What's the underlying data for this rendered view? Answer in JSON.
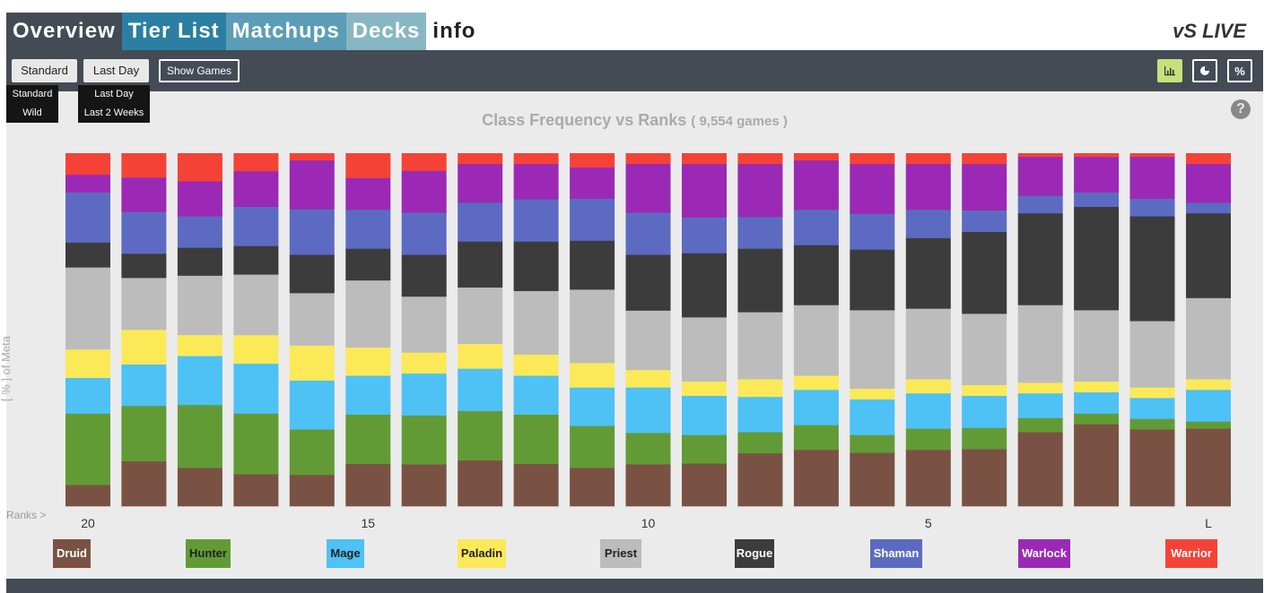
{
  "nav": {
    "tabs": [
      {
        "label": "Overview",
        "bg": "#444b55"
      },
      {
        "label": "Tier List",
        "bg": "#2a7fa3"
      },
      {
        "label": "Matchups",
        "bg": "#5b9db6"
      },
      {
        "label": "Decks",
        "bg": "#87b7c2"
      },
      {
        "label": "info",
        "bg": "#ffffff"
      }
    ],
    "logo": "vS LIVE"
  },
  "toolbar": {
    "format_button": "Standard",
    "time_button": "Last Day",
    "show_games_button": "Show Games",
    "format_options": [
      "Standard",
      "Wild"
    ],
    "time_options": [
      "Last Day",
      "Last 2 Weeks"
    ],
    "icons": [
      "bar-chart-icon",
      "pie-chart-icon",
      "percent-icon"
    ],
    "active_icon_color": "#c8e07a"
  },
  "chart_title": {
    "main": "Class Frequency vs Ranks",
    "sub": "( 9,554 games )"
  },
  "ranks_label": "Ranks >",
  "chart_data": {
    "type": "bar",
    "stacked": true,
    "normalized_percent": true,
    "title": "Class Frequency vs Ranks",
    "ylabel": "[ % ] of Meta",
    "xlabel": "Ranks >",
    "ylim": [
      0,
      100
    ],
    "categories": [
      "20",
      "19",
      "18",
      "17",
      "16",
      "15",
      "14",
      "13",
      "12",
      "11",
      "10",
      "9",
      "8",
      "7",
      "6",
      "5",
      "4",
      "3",
      "2",
      "1",
      "L"
    ],
    "x_tick_labels": [
      "20",
      "15",
      "10",
      "5",
      "L"
    ],
    "series": [
      {
        "name": "Druid",
        "color": "#7a5244",
        "values": [
          6,
          13,
          11,
          9,
          9,
          12,
          12,
          13,
          12,
          11,
          12,
          12,
          15,
          16,
          15,
          16,
          16,
          21,
          23,
          22,
          22
        ]
      },
      {
        "name": "Hunter",
        "color": "#629b36",
        "values": [
          20,
          16,
          18,
          17,
          13,
          14,
          14,
          14,
          14,
          12,
          9,
          8,
          6,
          7,
          5,
          6,
          6,
          4,
          3,
          3,
          2
        ]
      },
      {
        "name": "Mage",
        "color": "#4ec1f5",
        "values": [
          10,
          12,
          14,
          14,
          14,
          11,
          12,
          12,
          11,
          11,
          13,
          11,
          10,
          10,
          10,
          10,
          9,
          7,
          6,
          6,
          9
        ]
      },
      {
        "name": "Paladin",
        "color": "#fbe957",
        "values": [
          8,
          10,
          6,
          8,
          10,
          8,
          6,
          7,
          6,
          7,
          5,
          4,
          5,
          4,
          3,
          4,
          3,
          3,
          3,
          3,
          3
        ]
      },
      {
        "name": "Priest",
        "color": "#bcbcbc",
        "values": [
          23,
          15,
          17,
          17,
          15,
          19,
          16,
          16,
          18,
          21,
          17,
          18,
          19,
          20,
          22,
          20,
          20,
          22,
          20,
          19,
          23
        ]
      },
      {
        "name": "Rogue",
        "color": "#3c3c3c",
        "values": [
          7,
          7,
          8,
          8,
          11,
          9,
          12,
          13,
          14,
          14,
          16,
          18,
          18,
          17,
          17,
          20,
          23,
          26,
          29,
          30,
          24
        ]
      },
      {
        "name": "Shaman",
        "color": "#5c6bc1",
        "values": [
          14,
          12,
          9,
          11,
          13,
          11,
          12,
          11,
          12,
          12,
          12,
          10,
          9,
          10,
          10,
          8,
          6,
          5,
          4,
          5,
          3
        ]
      },
      {
        "name": "Warlock",
        "color": "#9b29b6",
        "values": [
          5,
          10,
          10,
          10,
          14,
          9,
          12,
          11,
          10,
          9,
          14,
          15,
          15,
          14,
          14,
          13,
          13,
          11,
          10,
          12,
          11
        ]
      },
      {
        "name": "Warrior",
        "color": "#f44336",
        "values": [
          6,
          7,
          8,
          5,
          2,
          7,
          5,
          3,
          3,
          4,
          3,
          3,
          3,
          2,
          3,
          3,
          3,
          1,
          1,
          1,
          3
        ]
      }
    ],
    "legend_position": "bottom"
  },
  "legend": [
    {
      "name": "Druid",
      "color": "#7a5244",
      "text_color": "#ffffff"
    },
    {
      "name": "Hunter",
      "color": "#629b36",
      "text_color": "#222222"
    },
    {
      "name": "Mage",
      "color": "#4ec1f5",
      "text_color": "#222222"
    },
    {
      "name": "Paladin",
      "color": "#fbe957",
      "text_color": "#222222"
    },
    {
      "name": "Priest",
      "color": "#bcbcbc",
      "text_color": "#222222"
    },
    {
      "name": "Rogue",
      "color": "#3c3c3c",
      "text_color": "#ffffff"
    },
    {
      "name": "Shaman",
      "color": "#5c6bc1",
      "text_color": "#ffffff"
    },
    {
      "name": "Warlock",
      "color": "#9b29b6",
      "text_color": "#ffffff"
    },
    {
      "name": "Warrior",
      "color": "#f44336",
      "text_color": "#ffffff"
    }
  ]
}
